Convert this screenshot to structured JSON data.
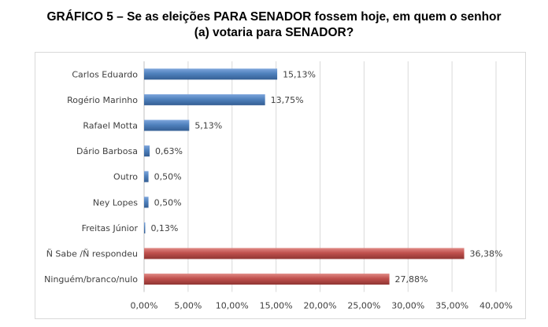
{
  "title_line1": "GRÁFICO 5 – Se as eleições PARA SENADOR fossem hoje, em quem o senhor",
  "title_line2": "(a) votaria para SENADOR?",
  "colors": {
    "blue": "#4f81bd",
    "red": "#c0504d",
    "grid": "#d9d9d9",
    "axis": "#bfbfbf"
  },
  "chart_data": {
    "type": "bar",
    "orientation": "horizontal",
    "title": "GRÁFICO 5 – Se as eleições PARA SENADOR fossem hoje, em quem o senhor (a) votaria para SENADOR?",
    "xlabel": "",
    "ylabel": "",
    "xlim": [
      0,
      40
    ],
    "ticks": [
      0,
      5,
      10,
      15,
      20,
      25,
      30,
      35,
      40
    ],
    "tick_labels": [
      "0,00%",
      "5,00%",
      "10,00%",
      "15,00%",
      "20,00%",
      "25,00%",
      "30,00%",
      "35,00%",
      "40,00%"
    ],
    "categories": [
      "Carlos Eduardo",
      "Rogério Marinho",
      "Rafael Motta",
      "Dário Barbosa",
      "Outro",
      "Ney Lopes",
      "Freitas Júnior",
      "Ñ Sabe /Ñ respondeu",
      "Ninguém/branco/nulo"
    ],
    "values": [
      15.13,
      13.75,
      5.13,
      0.63,
      0.5,
      0.5,
      0.13,
      36.38,
      27.88
    ],
    "value_labels": [
      "15,13%",
      "13,75%",
      "5,13%",
      "0,63%",
      "0,50%",
      "0,50%",
      "0,13%",
      "36,38%",
      "27,88%"
    ],
    "bar_color_keys": [
      "blue",
      "blue",
      "blue",
      "blue",
      "blue",
      "blue",
      "blue",
      "red",
      "red"
    ],
    "grid": true,
    "legend": "none"
  }
}
